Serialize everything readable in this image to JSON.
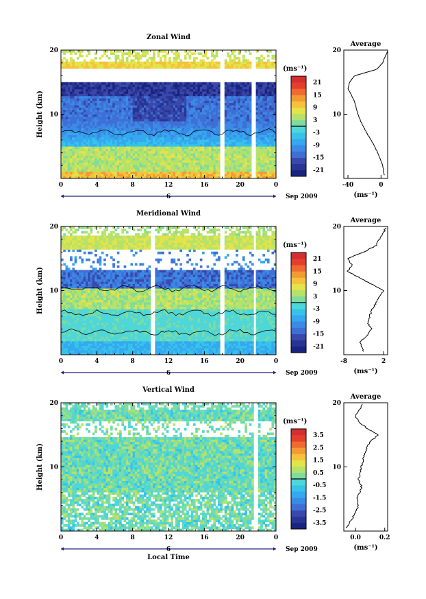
{
  "chart_data": [
    {
      "type": "heatmap",
      "title": "Zonal Wind",
      "xlabel": "",
      "ylabel": "Height (km)",
      "x_ticks": [
        "0",
        "4",
        "8",
        "12",
        "16",
        "20",
        "0"
      ],
      "y_ticks": [
        "20",
        "10"
      ],
      "xlim": [
        0,
        24
      ],
      "ylim": [
        0,
        20
      ],
      "date_marker": "6",
      "date_label": "Sep 2009",
      "colorbar": {
        "unit": "(ms⁻¹)",
        "ticks": [
          "21",
          "15",
          "9",
          "3",
          "-3",
          "-9",
          "-15",
          "-21"
        ],
        "range": [
          -24,
          24
        ],
        "colors": [
          "#1a237e",
          "#283593",
          "#3949ab",
          "#3f6fd6",
          "#3a8ae6",
          "#35a8f0",
          "#36c3ea",
          "#4fd6d8",
          "#7ddc9e",
          "#b5e26a",
          "#e3e34a",
          "#f5c23a",
          "#f39a35",
          "#ef6a30",
          "#e53e2c",
          "#d32f2f"
        ]
      },
      "average": {
        "title": "Average",
        "xlabel": "(ms⁻¹)",
        "x_ticks": [
          "-40",
          "0"
        ],
        "y_ticks": [
          "20",
          "10"
        ],
        "xlim": [
          -45,
          8
        ],
        "profile_z": [
          0.5,
          1,
          2,
          3,
          4,
          5,
          6,
          7,
          8,
          9,
          10,
          11,
          12,
          13,
          14,
          15,
          16,
          17,
          18,
          19,
          19.8
        ],
        "profile_u": [
          4,
          3,
          2,
          -1,
          -4,
          -8,
          -12,
          -17,
          -21,
          -25,
          -28,
          -30,
          -32,
          -36,
          -40,
          -38,
          -32,
          -5,
          2,
          5,
          8
        ]
      }
    },
    {
      "type": "heatmap",
      "title": "Meridional Wind",
      "xlabel": "",
      "ylabel": "Height (km)",
      "x_ticks": [
        "0",
        "4",
        "8",
        "12",
        "16",
        "20",
        "0"
      ],
      "y_ticks": [
        "20",
        "10"
      ],
      "xlim": [
        0,
        24
      ],
      "ylim": [
        0,
        20
      ],
      "date_marker": "6",
      "date_label": "Sep 2009",
      "colorbar": {
        "unit": "(ms⁻¹)",
        "ticks": [
          "21",
          "15",
          "9",
          "3",
          "-3",
          "-9",
          "-15",
          "-21"
        ],
        "range": [
          -24,
          24
        ],
        "colors": [
          "#1a237e",
          "#283593",
          "#3949ab",
          "#3f6fd6",
          "#3a8ae6",
          "#35a8f0",
          "#36c3ea",
          "#4fd6d8",
          "#7ddc9e",
          "#b5e26a",
          "#e3e34a",
          "#f5c23a",
          "#f39a35",
          "#ef6a30",
          "#e53e2c",
          "#d32f2f"
        ]
      },
      "average": {
        "title": "Average",
        "xlabel": "(ms⁻¹)",
        "x_ticks": [
          "-8",
          "2"
        ],
        "y_ticks": [
          "20",
          "10"
        ],
        "xlim": [
          -8,
          3
        ],
        "profile_z": [
          0.5,
          1,
          2,
          3,
          4,
          5,
          6,
          7,
          8,
          9,
          10,
          11,
          12,
          13,
          14,
          15,
          16,
          17,
          18,
          19,
          19.8
        ],
        "profile_u": [
          -3,
          -3.5,
          -4,
          -2,
          -1,
          -2,
          -1.5,
          -1,
          0,
          1,
          2,
          -1,
          -4,
          -7,
          -6,
          -7,
          -3,
          0,
          1,
          2,
          2.5
        ]
      }
    },
    {
      "type": "heatmap",
      "title": "Vertical Wind",
      "xlabel": "Local Time",
      "ylabel": "Height (km)",
      "x_ticks": [
        "0",
        "4",
        "8",
        "12",
        "16",
        "20",
        "0"
      ],
      "y_ticks": [
        "20",
        "10"
      ],
      "xlim": [
        0,
        24
      ],
      "ylim": [
        0,
        20
      ],
      "date_marker": "6",
      "date_label": "Sep 2009",
      "colorbar": {
        "unit": "(ms⁻¹)",
        "ticks": [
          "3.5",
          "2.5",
          "1.5",
          "0.5",
          "-0.5",
          "-1.5",
          "-2.5",
          "-3.5"
        ],
        "range": [
          -4,
          4
        ],
        "colors": [
          "#1a237e",
          "#283593",
          "#3949ab",
          "#3f6fd6",
          "#3a8ae6",
          "#35a8f0",
          "#36c3ea",
          "#4fd6d8",
          "#7ddc9e",
          "#b5e26a",
          "#e3e34a",
          "#f5c23a",
          "#f39a35",
          "#ef6a30",
          "#e53e2c",
          "#d32f2f"
        ]
      },
      "average": {
        "title": "Average",
        "xlabel": "(ms⁻¹)",
        "x_ticks": [
          "0.0",
          "0.2"
        ],
        "y_ticks": [
          "20",
          "10"
        ],
        "xlim": [
          -0.08,
          0.22
        ],
        "profile_z": [
          0.5,
          1,
          2,
          3,
          4,
          5,
          6,
          7,
          8,
          9,
          10,
          11,
          12,
          13,
          14,
          15,
          16,
          17,
          18,
          19,
          19.8
        ],
        "profile_u": [
          -0.06,
          -0.05,
          -0.02,
          0.0,
          0.02,
          0.01,
          0.03,
          0.04,
          0.02,
          0.03,
          0.04,
          0.05,
          0.06,
          0.08,
          0.1,
          0.16,
          0.08,
          0.02,
          0.0,
          0.03,
          0.05
        ]
      }
    }
  ]
}
